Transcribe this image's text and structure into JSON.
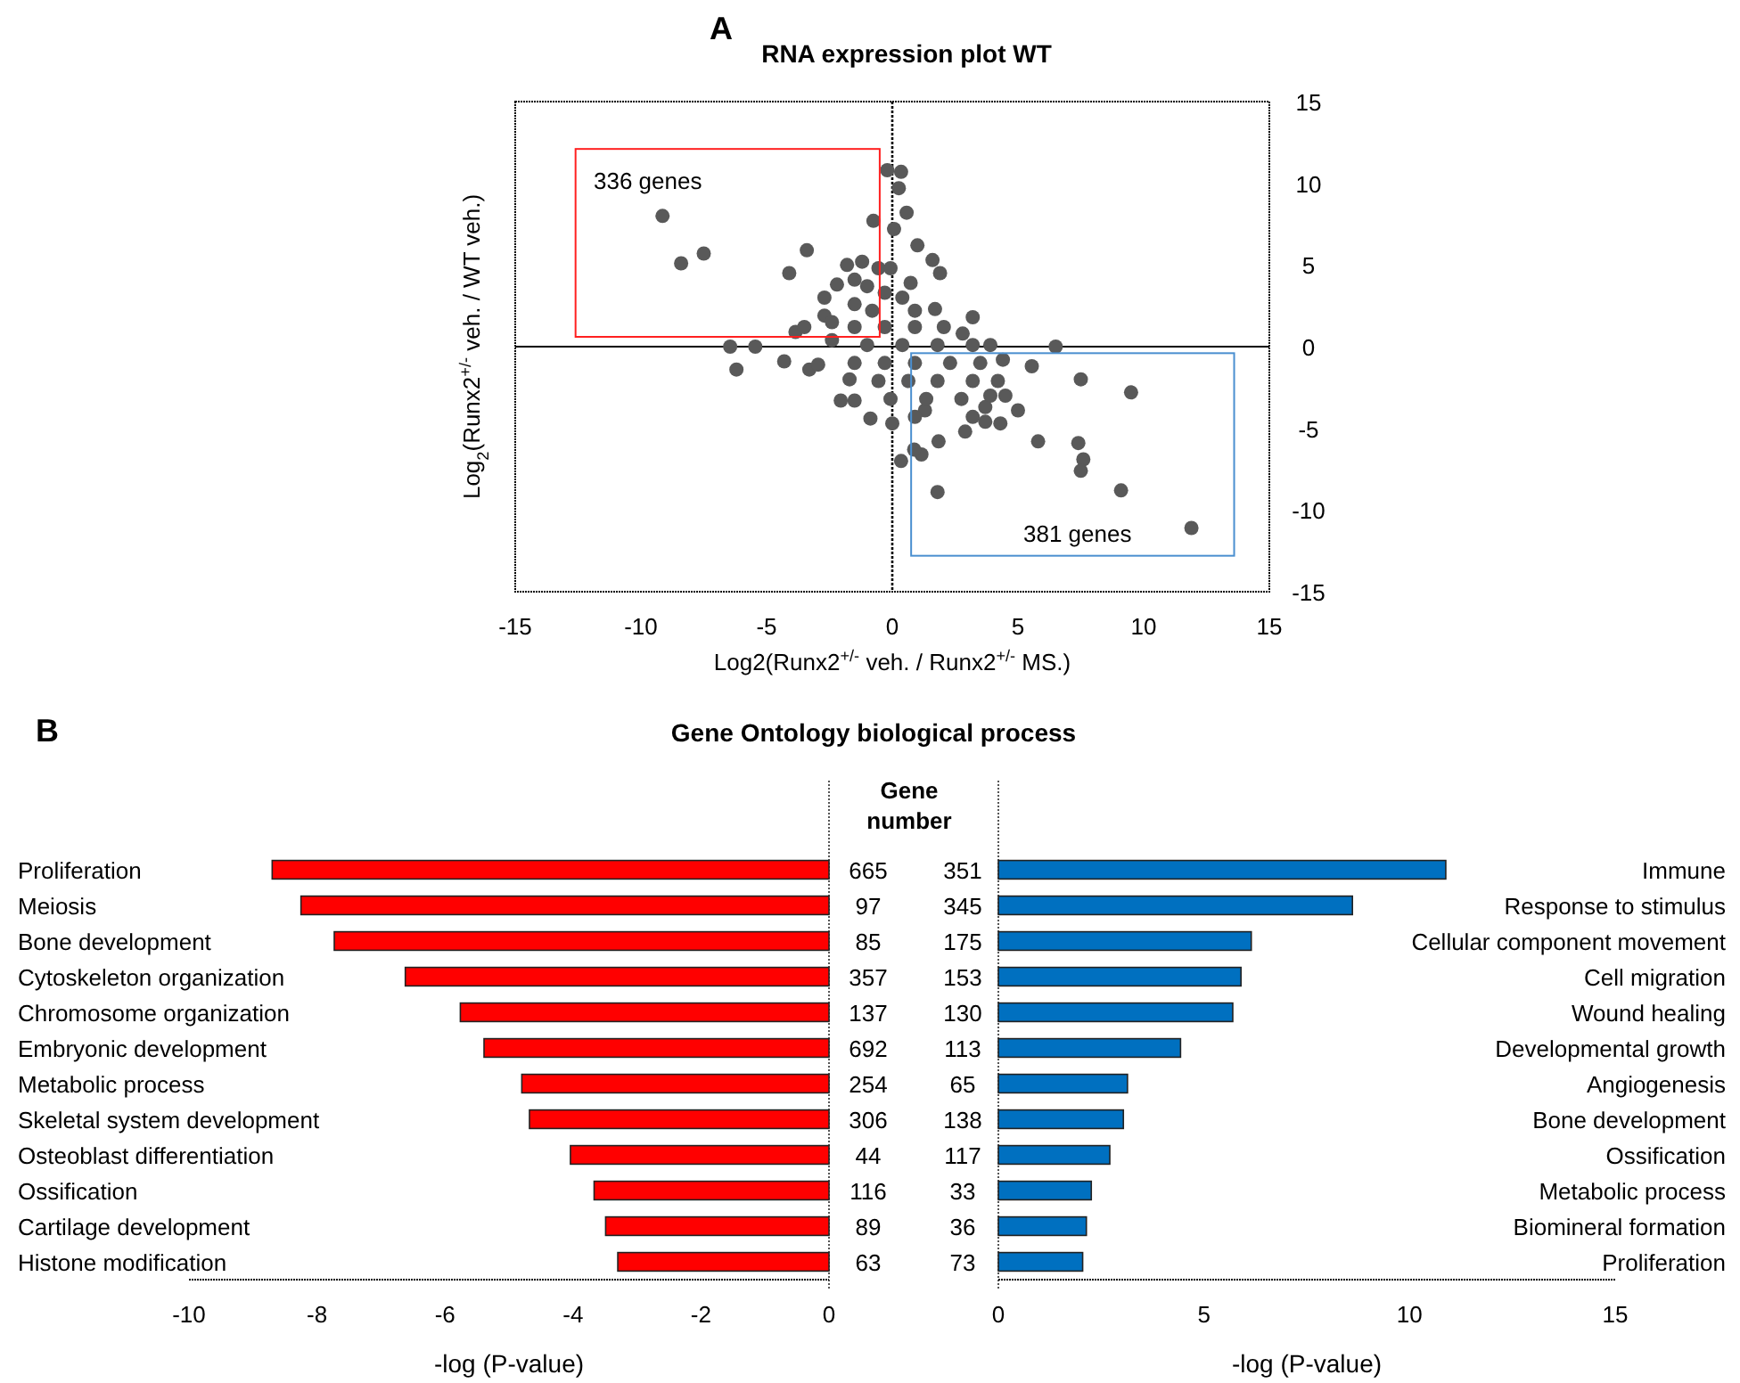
{
  "chart_data": [
    {
      "type": "scatter",
      "title": "RNA expression plot WT",
      "xlabel": "Log2(Runx2$^{+/-}$ veh. / Runx2$^{+/-}$ MS.)",
      "ylabel": "Log$_{2}$(Runx2$^{+/-}$ veh. / WT veh.)",
      "xlim": [
        -15,
        15
      ],
      "ylim": [
        -15,
        15
      ],
      "xticks": [
        -15,
        -10,
        -5,
        0,
        5,
        10,
        15
      ],
      "yticks": [
        -15,
        -10,
        -5,
        0,
        5,
        10,
        15
      ],
      "grid": false,
      "marker": "circle",
      "series": [
        {
          "color": "#595959",
          "x": [
            -9.14,
            -8.4,
            -7.5,
            -6.45,
            -6.2,
            -5.45,
            -4.1,
            -3.4,
            -1.8,
            -1.2,
            -0.75,
            -0.2,
            0.35,
            0.26,
            0.57,
            0.07,
            1.0,
            1.6,
            1.9,
            0.73,
            1.7,
            3.2,
            6.5,
            5.55,
            7.5,
            9.5,
            5.0,
            5.8,
            7.4,
            7.6,
            7.5,
            9.1,
            11.9,
            1.84,
            1.8,
            1.16,
            0.87,
            0.35,
            0,
            -0.87,
            -2.05,
            -1.5,
            -1.7,
            1.3,
            2.9,
            4.3,
            3.7,
            4.5,
            4.4,
            -4.3,
            -3.3,
            -2.95,
            -3.85,
            -3.5,
            -2.7,
            -2.7,
            -2.2,
            -1.5,
            -0.55,
            -0.07,
            -1.0,
            -0.3,
            0.4,
            -1.5,
            -0.8,
            0.9,
            -2.4,
            -1.5,
            -0.3,
            0.9,
            2.05,
            2.8,
            -2.4,
            -1.0,
            0.4,
            1.8,
            3.2,
            3.9,
            -1.5,
            -0.3,
            0.9,
            2.3,
            3.5,
            -0.55,
            0.64,
            1.8,
            3.2,
            4.2,
            -0.07,
            1.35,
            2.75,
            3.9,
            3.2,
            3.7,
            0.9
          ],
          "values": [
            8.0,
            5.1,
            5.7,
            0,
            -1.4,
            0,
            4.5,
            5.9,
            5.0,
            5.2,
            7.7,
            10.8,
            10.7,
            9.7,
            8.2,
            7.2,
            6.2,
            5.3,
            4.5,
            3.9,
            2.3,
            1.8,
            0,
            -1.2,
            -2.0,
            -2.8,
            -3.9,
            -5.8,
            -5.9,
            -6.9,
            -7.6,
            -8.8,
            -11.1,
            -5.8,
            -8.9,
            -6.6,
            -6.3,
            -7.0,
            -4.7,
            -4.4,
            -3.3,
            -3.3,
            -2.0,
            -3.9,
            -5.2,
            -4.7,
            -3.7,
            -3.0,
            -0.8,
            -0.9,
            -1.4,
            -1.1,
            0.9,
            1.2,
            1.9,
            3.0,
            3.8,
            4.1,
            4.8,
            4.8,
            3.7,
            3.3,
            3.0,
            2.6,
            2.2,
            2.2,
            1.5,
            1.2,
            1.2,
            1.2,
            1.2,
            0.8,
            0.4,
            0.1,
            0.1,
            0.1,
            0.1,
            0.1,
            -1.0,
            -1.0,
            -1.0,
            -1.0,
            -1.0,
            -2.1,
            -2.1,
            -2.1,
            -2.1,
            -2.1,
            -3.2,
            -3.2,
            -3.2,
            -3.0,
            -4.3,
            -4.6,
            -4.3
          ]
        }
      ],
      "ref_lines": [
        {
          "axis": "x",
          "value": 0,
          "line_style": "dotted"
        },
        {
          "axis": "y",
          "value": 0
        }
      ],
      "annotations": [
        "A",
        "336 genes",
        "381 genes"
      ]
    },
    {
      "type": "bar",
      "orientation": "horizontal",
      "title": "Gene Ontology biological process",
      "xlabel": "-log (P-value)",
      "xlim": [
        -10,
        0
      ],
      "xticks": [
        -10,
        -8,
        -6,
        -4,
        -2,
        0
      ],
      "categories": [
        "Proliferation",
        "Meiosis",
        "Bone development",
        "Cytoskeleton organization",
        "Chromosome organization",
        "Embryonic development",
        "Metabolic process",
        "Skeletal system development",
        "Osteoblast differentiation",
        "Ossification",
        "Cartilage development",
        "Histone modification"
      ],
      "values": [
        -8.7,
        -8.25,
        -7.73,
        -6.62,
        -5.76,
        -5.39,
        -4.8,
        -4.68,
        -4.04,
        -3.67,
        -3.49,
        -3.3
      ],
      "color": "#ff0000",
      "annotations": [
        "B",
        "Gene number",
        "665",
        "97",
        "85",
        "357",
        "137",
        "692",
        "254",
        "306",
        "44",
        "116",
        "89",
        "63"
      ]
    },
    {
      "type": "bar",
      "orientation": "horizontal",
      "xlabel": "-log (P-value)",
      "xlim": [
        0,
        15
      ],
      "xticks": [
        0,
        5,
        10,
        15
      ],
      "categories": [
        "Immune",
        "Response to stimulus",
        "Cellular component movement",
        "Cell migration",
        "Wound healing",
        "Developmental growth",
        "Angiogenesis",
        "Bone development",
        "Ossification",
        "Metabolic process",
        "Biomineral formation",
        "Proliferation"
      ],
      "values": [
        10.88,
        8.61,
        6.15,
        5.9,
        5.7,
        4.43,
        3.14,
        3.04,
        2.71,
        2.26,
        2.14,
        2.05
      ],
      "color": "#0070c0",
      "annotations": [
        "351",
        "345",
        "175",
        "153",
        "130",
        "113",
        "65",
        "138",
        "117",
        "33",
        "36",
        "73"
      ]
    }
  ]
}
